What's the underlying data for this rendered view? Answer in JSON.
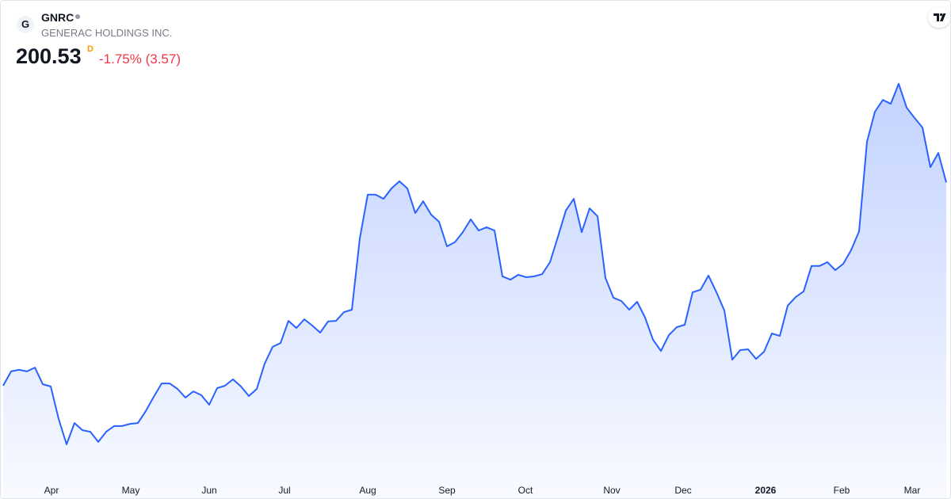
{
  "header": {
    "logo": "G",
    "symbol": "GNRC",
    "name": "GENERAC HOLDINGS INC.",
    "price": "200.53",
    "price_flag": "D",
    "change": "-1.75% (3.57)"
  },
  "chart_data": {
    "type": "area",
    "color": "#2962ff",
    "values": [
      126.1,
      131.3,
      131.9,
      131.3,
      132.7,
      126.6,
      125.8,
      113.9,
      104.6,
      112.4,
      109.8,
      109.2,
      105.5,
      109.2,
      111.3,
      111.3,
      112.1,
      112.4,
      116.8,
      122.0,
      126.9,
      126.9,
      124.9,
      121.7,
      124.0,
      122.6,
      119.1,
      125.2,
      126.1,
      128.4,
      125.8,
      122.3,
      124.9,
      134.2,
      140.3,
      141.7,
      149.8,
      147.2,
      150.4,
      148.1,
      145.5,
      149.6,
      149.8,
      153.0,
      153.9,
      180.0,
      196.0,
      196.0,
      194.5,
      198.3,
      200.9,
      198.3,
      189.3,
      193.6,
      188.7,
      186.1,
      177.1,
      178.6,
      182.3,
      187.0,
      182.9,
      184.1,
      182.9,
      166.1,
      164.9,
      166.7,
      165.8,
      166.1,
      166.9,
      171.3,
      180.6,
      190.2,
      194.5,
      182.3,
      191.0,
      188.1,
      165.5,
      158.3,
      157.1,
      153.9,
      156.8,
      151.0,
      142.9,
      138.8,
      144.6,
      147.5,
      148.4,
      160.3,
      161.2,
      166.4,
      160.3,
      153.6,
      135.6,
      139.1,
      139.4,
      135.9,
      138.5,
      145.2,
      144.3,
      155.4,
      158.5,
      160.6,
      169.9,
      169.9,
      171.3,
      168.4,
      170.7,
      175.7,
      182.6,
      215.4,
      226.4,
      230.7,
      229.3,
      236.6,
      227.9,
      224.1,
      220.6,
      206.1,
      211.3,
      200.53
    ],
    "xlim": [
      0,
      119
    ],
    "ylim": [
      93,
      238
    ],
    "xticks": [
      {
        "value": 6.1,
        "label": "Apr"
      },
      {
        "value": 16.1,
        "label": "May"
      },
      {
        "value": 26,
        "label": "Jun"
      },
      {
        "value": 35.5,
        "label": "Jul"
      },
      {
        "value": 46,
        "label": "Aug"
      },
      {
        "value": 56,
        "label": "Sep"
      },
      {
        "value": 65.9,
        "label": "Oct"
      },
      {
        "value": 76.8,
        "label": "Nov"
      },
      {
        "value": 85.8,
        "label": "Dec"
      },
      {
        "value": 96.2,
        "label": "2026"
      },
      {
        "value": 105.8,
        "label": "Feb"
      },
      {
        "value": 114.7,
        "label": "Mar"
      }
    ]
  }
}
